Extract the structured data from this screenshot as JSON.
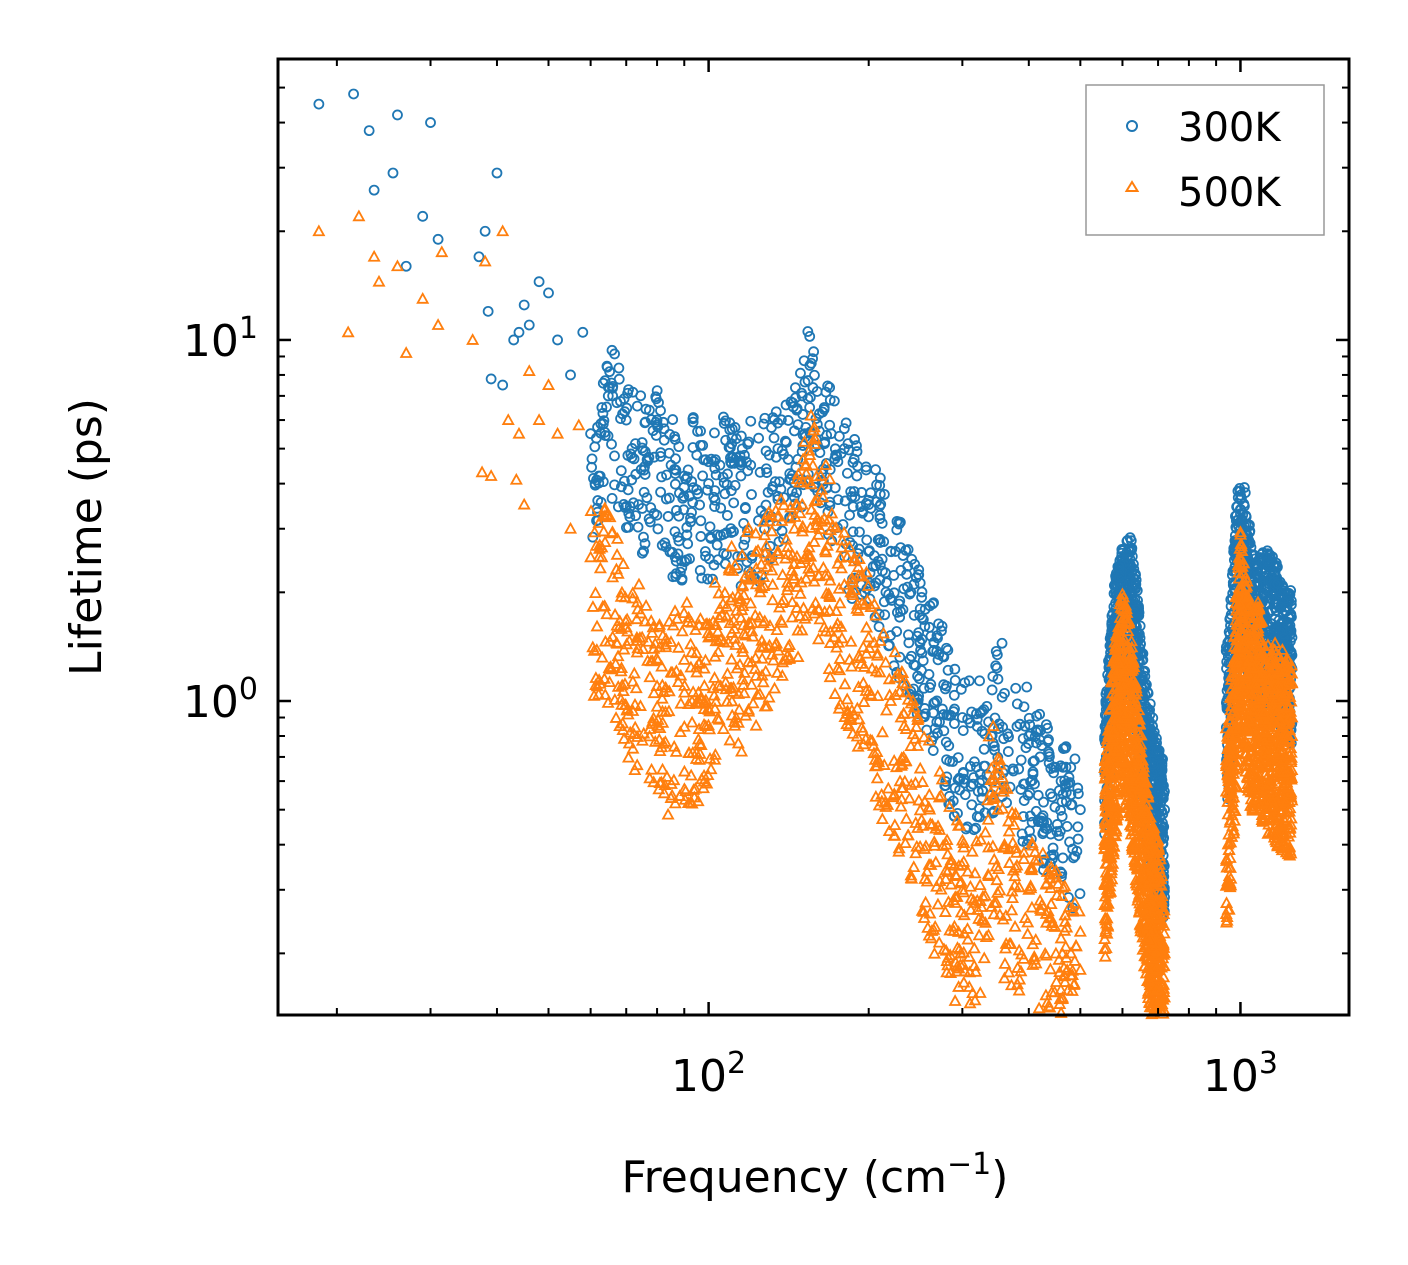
{
  "chart_data": {
    "type": "scatter",
    "x_scale": "log",
    "y_scale": "log",
    "xlim": [
      15.5,
      1600
    ],
    "ylim": [
      0.135,
      60
    ],
    "xlabel": "Frequency (cm",
    "xlabel_sup": "−1",
    "xlabel_end": ")",
    "ylabel": "Lifetime (ps)",
    "x_major_ticks": [
      {
        "value": 100,
        "base": "10",
        "exp": "2"
      },
      {
        "value": 1000,
        "base": "10",
        "exp": "3"
      }
    ],
    "y_major_ticks": [
      {
        "value": 1,
        "base": "10",
        "exp": "0"
      },
      {
        "value": 10,
        "base": "10",
        "exp": "1"
      }
    ],
    "legend": {
      "position": "top-right",
      "entries": [
        {
          "label": "300K",
          "marker": "circle",
          "color": "#1f77b4"
        },
        {
          "label": "500K",
          "marker": "triangle",
          "color": "#ff7f0e"
        }
      ]
    },
    "series": [
      {
        "name": "300K",
        "marker": "circle",
        "color": "#1f77b4",
        "x": [
          18.5,
          21.5,
          23,
          23.5,
          25.5,
          26,
          27,
          29,
          30,
          31,
          37,
          38,
          38.5,
          39,
          40,
          41,
          43,
          44,
          45,
          46,
          48,
          50,
          52,
          55,
          58,
          60,
          63,
          66,
          70,
          75,
          80,
          85,
          90,
          95,
          100,
          105,
          110,
          115,
          120,
          125,
          130,
          135,
          140,
          145,
          150,
          155,
          160,
          165,
          170,
          175,
          180,
          185,
          190,
          200,
          210,
          220,
          230,
          240,
          250,
          260,
          270,
          280,
          290,
          300,
          320,
          340,
          350,
          360,
          380,
          400,
          420,
          440,
          460,
          480,
          500,
          560,
          580,
          600,
          620,
          640,
          660,
          680,
          700,
          720,
          950,
          980,
          1000,
          1020,
          1050,
          1080,
          1100,
          1150,
          1200,
          1250
        ],
        "y": [
          45,
          48,
          38,
          26,
          29,
          42,
          16,
          22,
          40,
          19,
          17,
          20,
          12,
          7.8,
          29,
          7.5,
          10,
          10.5,
          12.5,
          11,
          14.5,
          13.5,
          10,
          8,
          10.5,
          5.5,
          6.5,
          7,
          6,
          5.2,
          6,
          4.5,
          4.2,
          4.8,
          4.0,
          4.5,
          4.6,
          4.2,
          4.5,
          4.3,
          4.8,
          5.0,
          5.2,
          5.6,
          7.0,
          8.5,
          7.2,
          6.5,
          5.5,
          4.6,
          5.0,
          3.8,
          4.2,
          3.5,
          3.2,
          2.6,
          2.3,
          2.0,
          1.8,
          1.6,
          1.3,
          1.1,
          0.95,
          0.9,
          0.85,
          0.8,
          1.15,
          1.05,
          0.85,
          0.8,
          0.7,
          0.65,
          0.6,
          0.55,
          0.5,
          0.85,
          1.6,
          2.0,
          2.2,
          1.5,
          0.9,
          0.7,
          0.55,
          0.5,
          1.1,
          2.5,
          3.3,
          2.9,
          2.0,
          1.8,
          1.9,
          2.0,
          1.6,
          1.5
        ]
      },
      {
        "name": "500K",
        "marker": "triangle",
        "color": "#ff7f0e",
        "x": [
          18.5,
          21,
          22,
          23.5,
          24,
          26,
          27,
          29,
          31,
          31.5,
          36,
          37.5,
          38,
          39,
          41,
          42,
          43.5,
          44,
          45,
          46,
          48,
          50,
          52,
          55,
          57,
          60,
          63,
          66,
          70,
          75,
          80,
          85,
          90,
          95,
          100,
          105,
          110,
          115,
          120,
          125,
          130,
          135,
          140,
          145,
          150,
          155,
          160,
          165,
          170,
          175,
          180,
          185,
          190,
          200,
          210,
          220,
          230,
          240,
          250,
          260,
          270,
          280,
          290,
          300,
          320,
          340,
          350,
          360,
          380,
          400,
          420,
          440,
          460,
          480,
          500,
          560,
          580,
          600,
          620,
          640,
          660,
          680,
          700,
          720,
          950,
          980,
          1000,
          1020,
          1050,
          1080,
          1100,
          1150,
          1200,
          1250
        ],
        "y": [
          20,
          10.5,
          22,
          17,
          14.5,
          16,
          9.2,
          13,
          11,
          17.5,
          10,
          4.3,
          16.5,
          4.2,
          20,
          6.0,
          4.1,
          5.5,
          3.5,
          8.2,
          6.0,
          7.5,
          5.5,
          3.0,
          5.8,
          2.5,
          2.5,
          2.2,
          1.6,
          1.5,
          1.1,
          1.2,
          1.3,
          1.2,
          1.5,
          1.8,
          1.9,
          1.7,
          2.2,
          2.0,
          2.5,
          2.6,
          2.8,
          3.0,
          3.5,
          4.8,
          3.6,
          3.2,
          2.8,
          2.4,
          2.1,
          2.0,
          1.8,
          1.5,
          1.2,
          1.0,
          0.9,
          0.75,
          0.65,
          0.55,
          0.45,
          0.4,
          0.35,
          0.3,
          0.28,
          0.65,
          0.5,
          0.4,
          0.35,
          0.3,
          0.28,
          0.25,
          0.22,
          0.2,
          0.18,
          0.5,
          1.0,
          1.4,
          1.1,
          0.7,
          0.45,
          0.32,
          0.28,
          0.2,
          0.6,
          1.3,
          2.0,
          1.6,
          1.2,
          1.3,
          1.1,
          1.0,
          0.95,
          0.9
        ]
      }
    ]
  }
}
